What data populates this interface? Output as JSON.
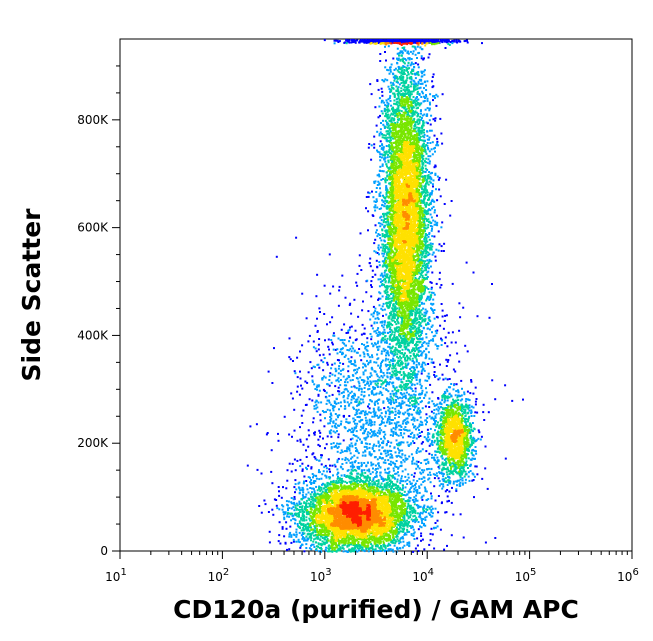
{
  "chart_data": {
    "type": "scatter",
    "style": "density-colored flow cytometry dot plot",
    "xlabel": "CD120a (purified) / GAM APC",
    "ylabel": "Side Scatter",
    "xscale": "log",
    "xlim": [
      10,
      1000000
    ],
    "ylim": [
      0,
      950000
    ],
    "x_ticks": [
      {
        "base": "10",
        "exp": "1"
      },
      {
        "base": "10",
        "exp": "2"
      },
      {
        "base": "10",
        "exp": "3"
      },
      {
        "base": "10",
        "exp": "4"
      },
      {
        "base": "10",
        "exp": "5"
      },
      {
        "base": "10",
        "exp": "6"
      }
    ],
    "y_ticks": [
      "0",
      "200K",
      "400K",
      "600K",
      "800K"
    ],
    "density_colors": [
      "#0000ff",
      "#00a0ff",
      "#00d2a0",
      "#78e600",
      "#ffe100",
      "#ff8c00",
      "#ff1e00"
    ],
    "populations": [
      {
        "name_shown": false,
        "x_center": 2000,
        "y_center": 70000,
        "x_spread_log10": 0.28,
        "y_spread": 32000,
        "relative_size": 0.32,
        "peak_density": "red"
      },
      {
        "name_shown": false,
        "x_center": 6000,
        "y_center": 620000,
        "x_spread_log10": 0.12,
        "y_spread": 150000,
        "relative_size": 0.42,
        "peak_density": "yellow-green"
      },
      {
        "name_shown": false,
        "x_center": 18000,
        "y_center": 210000,
        "x_spread_log10": 0.09,
        "y_spread": 38000,
        "relative_size": 0.09,
        "peak_density": "green"
      },
      {
        "name_shown": false,
        "x_center": 3000,
        "y_center": 250000,
        "x_spread_log10": 0.4,
        "y_spread": 110000,
        "relative_size": 0.12,
        "peak_density": "blue"
      },
      {
        "name_shown": false,
        "x_center": 5500,
        "y_center": 948000,
        "x_spread_log10": 0.25,
        "y_spread": 2500,
        "relative_size": 0.05,
        "peak_density": "red",
        "note": "saturated events at top of scale"
      }
    ]
  }
}
